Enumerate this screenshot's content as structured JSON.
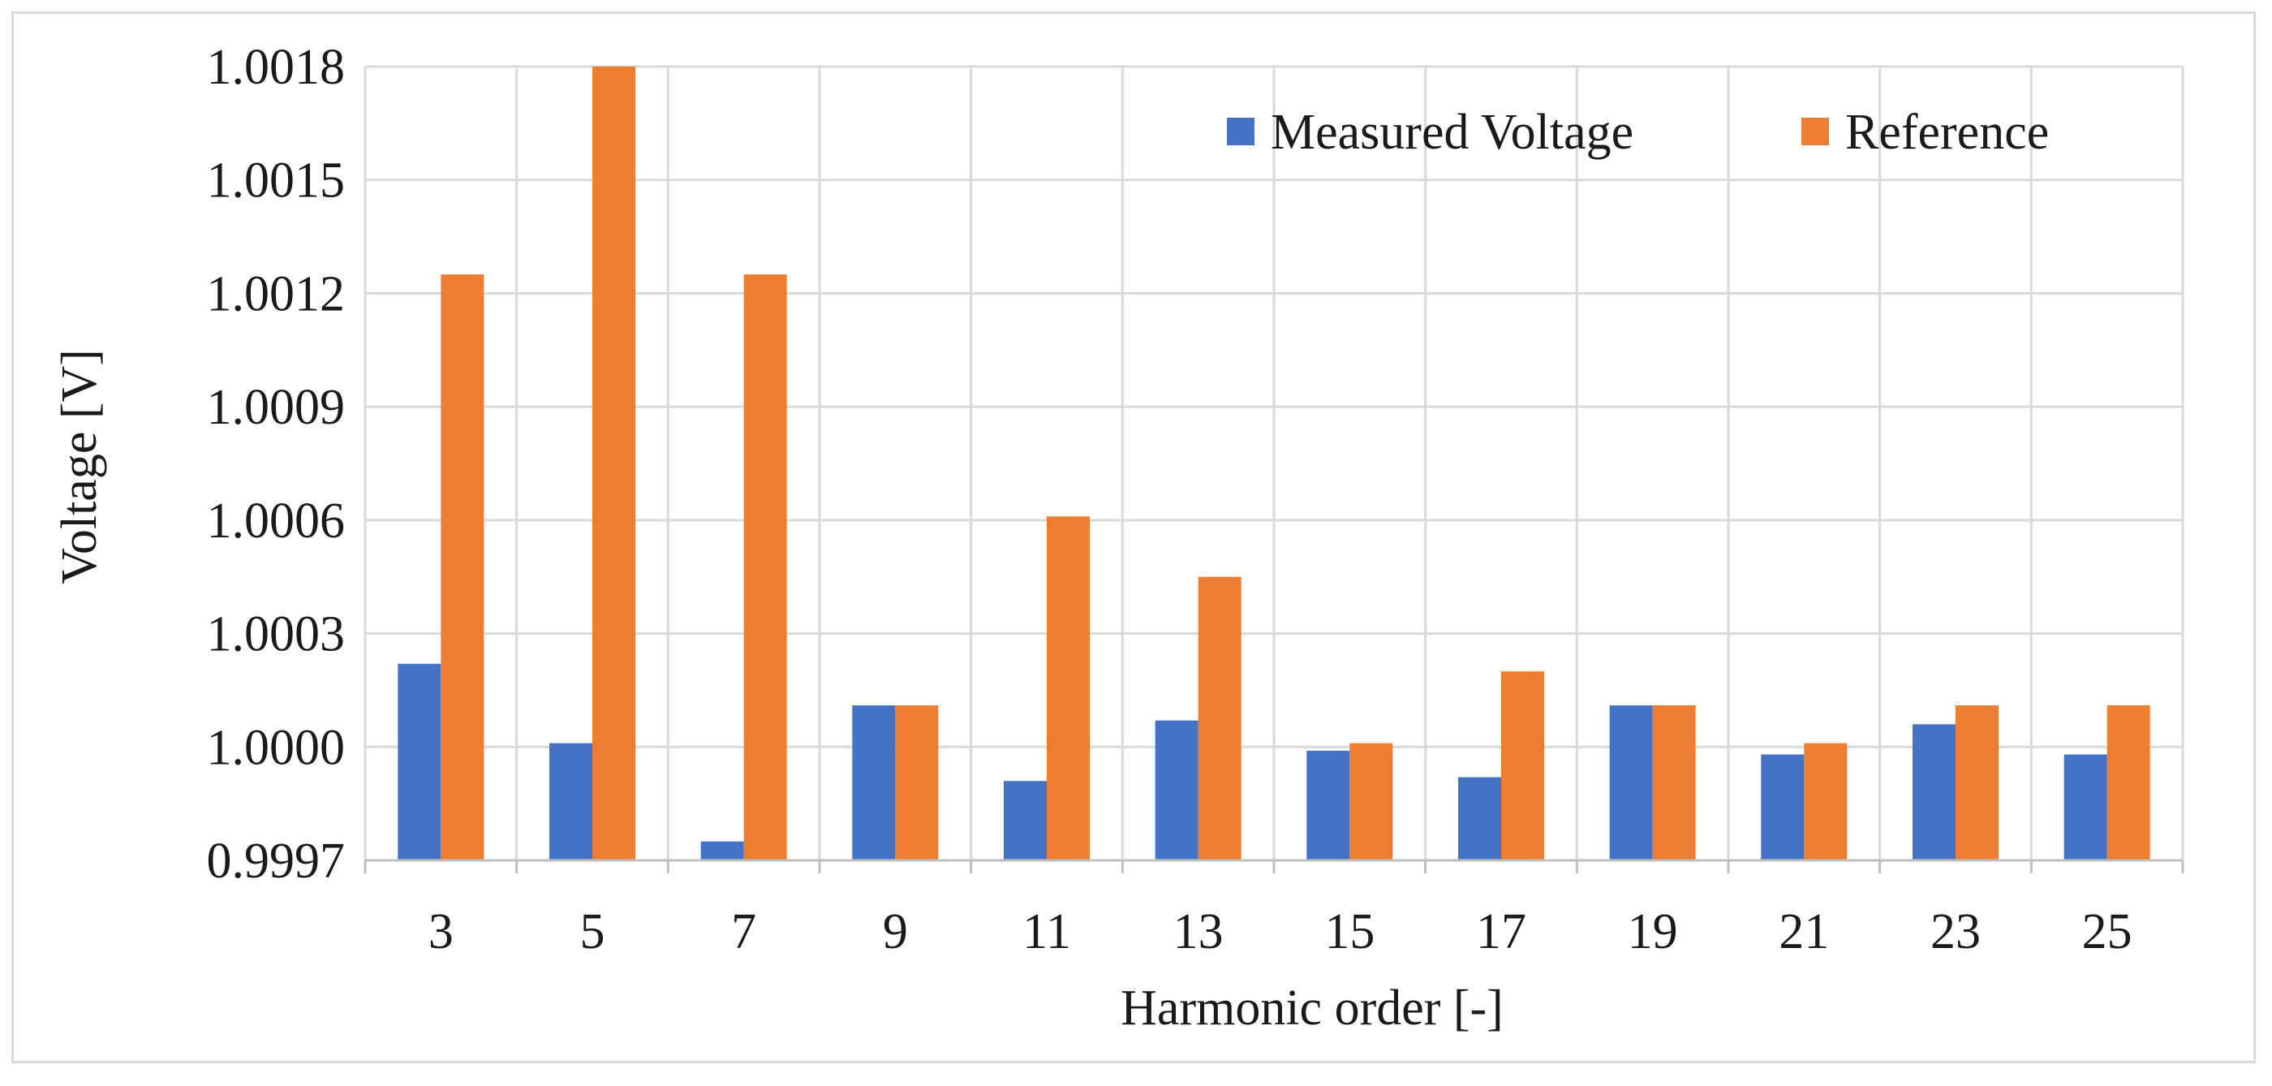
{
  "chart_data": {
    "type": "bar",
    "title": "",
    "xlabel": "Harmonic order [-]",
    "ylabel": "Voltage [V]",
    "categories": [
      "3",
      "5",
      "7",
      "9",
      "11",
      "13",
      "15",
      "17",
      "19",
      "21",
      "23",
      "25"
    ],
    "series": [
      {
        "name": "Measured Voltage",
        "color": "#4472c4",
        "values": [
          1.00022,
          1.00001,
          0.99975,
          1.00011,
          0.99991,
          1.00007,
          0.99999,
          0.99992,
          1.00011,
          0.99998,
          1.00006,
          0.99998
        ]
      },
      {
        "name": "Reference",
        "color": "#ed7d31",
        "values": [
          1.00125,
          1.0018,
          1.00125,
          1.00011,
          1.00061,
          1.00045,
          1.00001,
          1.0002,
          1.00011,
          1.00001,
          1.00011,
          1.00011
        ]
      }
    ],
    "yticks": [
      "0.9997",
      "1.0000",
      "1.0003",
      "1.0006",
      "1.0009",
      "1.0012",
      "1.0015",
      "1.0018"
    ],
    "ylim": [
      0.9997,
      1.0018
    ],
    "grid": true,
    "legend_position": "top-right"
  }
}
